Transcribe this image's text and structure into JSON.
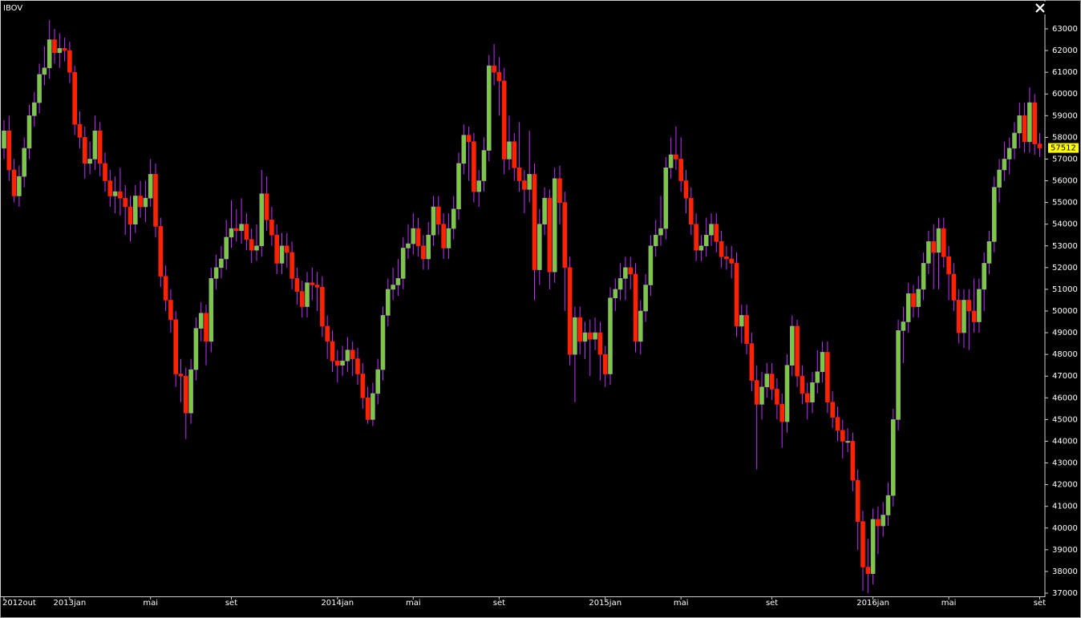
{
  "chart_data": {
    "type": "candlestick",
    "title": "IBOV",
    "up_color": "#7ac943",
    "down_color": "#ff2200",
    "wick_color": "#c030ff",
    "ylim": [
      37000,
      63000
    ],
    "yticks": [
      37000,
      38000,
      39000,
      40000,
      41000,
      42000,
      43000,
      44000,
      45000,
      46000,
      47000,
      48000,
      49000,
      50000,
      51000,
      52000,
      53000,
      54000,
      55000,
      56000,
      57000,
      58000,
      59000,
      60000,
      61000,
      62000,
      63000
    ],
    "categories": [
      "2012out",
      null,
      null,
      null,
      null,
      null,
      null,
      null,
      null,
      null,
      null,
      null,
      null,
      "2013jan",
      null,
      null,
      null,
      null,
      null,
      null,
      null,
      null,
      null,
      null,
      null,
      null,
      null,
      null,
      null,
      "mai",
      null,
      null,
      null,
      null,
      null,
      null,
      null,
      null,
      null,
      null,
      null,
      null,
      null,
      null,
      null,
      "set",
      null,
      null,
      null,
      null,
      null,
      null,
      null,
      null,
      null,
      null,
      null,
      null,
      null,
      null,
      null,
      null,
      null,
      null,
      null,
      null,
      "2014jan",
      null,
      null,
      null,
      null,
      null,
      null,
      null,
      null,
      null,
      null,
      null,
      null,
      null,
      null,
      "mai",
      null,
      null,
      null,
      null,
      null,
      null,
      null,
      null,
      null,
      null,
      null,
      null,
      null,
      null,
      null,
      null,
      "set",
      null,
      null,
      null,
      null,
      null,
      null,
      null,
      null,
      null,
      null,
      null,
      null,
      null,
      null,
      null,
      null,
      null,
      null,
      null,
      null,
      "2015jan",
      null,
      null,
      null,
      null,
      null,
      null,
      null,
      null,
      null,
      null,
      null,
      null,
      null,
      null,
      "mai",
      null,
      null,
      null,
      null,
      null,
      null,
      null,
      null,
      null,
      null,
      null,
      null,
      null,
      null,
      null,
      null,
      null,
      "set",
      null,
      null,
      null,
      null,
      null,
      null,
      null,
      null,
      null,
      null,
      null,
      null,
      null,
      null,
      null,
      null,
      null,
      null,
      null,
      "2016jan",
      null,
      null,
      null,
      null,
      null,
      null,
      null,
      null,
      null,
      null,
      null,
      null,
      null,
      null,
      "mai",
      null,
      null,
      null,
      null,
      null,
      null,
      null,
      null,
      null,
      null,
      null,
      null,
      null,
      null,
      null,
      null,
      null,
      "set"
    ],
    "open": [
      57500,
      58300,
      56500,
      55300,
      56200,
      57500,
      59000,
      59600,
      60900,
      61200,
      62500,
      61900,
      62100,
      62000,
      61000,
      58600,
      58000,
      56800,
      57000,
      58300,
      56800,
      56000,
      55300,
      55500,
      55200,
      54800,
      54000,
      55300,
      54800,
      55200,
      56300,
      53900,
      51600,
      50500,
      49600,
      47100,
      47000,
      45300,
      47300,
      49200,
      49900,
      48600,
      51500,
      52000,
      52400,
      53400,
      53800,
      53700,
      54000,
      53300,
      52800,
      53000,
      55400,
      54200,
      53500,
      52200,
      53000,
      52700,
      51500,
      50900,
      50200,
      51300,
      51200,
      51100,
      49300,
      48600,
      47700,
      47500,
      47700,
      48200,
      47800,
      47100,
      46000,
      45000,
      46200,
      47300,
      49800,
      51000,
      51200,
      51500,
      52900,
      53100,
      53800,
      53000,
      52400,
      53500,
      54800,
      54000,
      52900,
      53800,
      54700,
      56800,
      58100,
      57800,
      55500,
      56000,
      57400,
      61300,
      61000,
      60600,
      57000,
      57800,
      56600,
      56000,
      55600,
      56300,
      51900,
      54000,
      55200,
      51800,
      56100,
      55000,
      52000,
      48000,
      49700,
      48600,
      49000,
      48700,
      49000,
      48000,
      47100,
      50600,
      51000,
      51500,
      52000,
      51700,
      48600,
      50000,
      51200,
      53000,
      53500,
      53800,
      56600,
      57200,
      57000,
      56000,
      55200,
      54000,
      52800,
      53000,
      53500,
      54000,
      53200,
      52500,
      52400,
      52200,
      49300,
      49800,
      48500,
      46800,
      45700,
      46500,
      47100,
      46400,
      45700,
      44900,
      47500,
      49300,
      47000,
      46200,
      45800,
      46700,
      47200,
      48100,
      45800,
      45100,
      44500,
      44000,
      44000,
      42200,
      40300,
      38200,
      37900,
      40400,
      40100,
      40600,
      41500,
      45000,
      49100,
      49500,
      50800,
      50200,
      51000,
      52200,
      53200,
      52700,
      53800,
      52500,
      51700,
      50500,
      49000,
      50500,
      50000,
      49500,
      51000,
      52200,
      53200,
      55700,
      56500,
      57000,
      57500,
      58200,
      59000,
      57800,
      59600,
      57700
    ],
    "high": [
      58800,
      59000,
      57000,
      56700,
      58000,
      59500,
      60100,
      61400,
      62200,
      63400,
      63000,
      62800,
      62600,
      62400,
      61300,
      59200,
      58500,
      57800,
      59000,
      58700,
      57300,
      56500,
      56200,
      56600,
      55800,
      55300,
      55800,
      56000,
      56000,
      57000,
      56800,
      54300,
      52100,
      51000,
      50000,
      47800,
      47400,
      47800,
      49700,
      50400,
      50300,
      52000,
      52600,
      53000,
      54200,
      55100,
      54700,
      55200,
      54500,
      53800,
      54000,
      56500,
      56200,
      54800,
      54000,
      53600,
      53600,
      53200,
      52000,
      51400,
      51800,
      52000,
      51800,
      51600,
      49800,
      49100,
      48200,
      48400,
      48800,
      48600,
      48300,
      47600,
      46500,
      46700,
      47800,
      50200,
      51500,
      52000,
      52400,
      53400,
      54000,
      54500,
      54300,
      53500,
      54100,
      55300,
      55300,
      54500,
      54500,
      55300,
      57300,
      58600,
      58500,
      58200,
      56500,
      58000,
      61800,
      62300,
      61700,
      61200,
      59000,
      58200,
      58700,
      56500,
      58300,
      56800,
      54700,
      55700,
      55600,
      56600,
      56700,
      55500,
      52500,
      50200,
      50200,
      49500,
      49600,
      49700,
      49500,
      48400,
      51100,
      51500,
      52200,
      52500,
      52500,
      52200,
      50500,
      51700,
      53500,
      54200,
      55300,
      57100,
      58000,
      58500,
      58000,
      56500,
      55700,
      54500,
      53500,
      54300,
      54500,
      54500,
      53700,
      53000,
      53000,
      52700,
      50300,
      50300,
      49000,
      47500,
      47200,
      47600,
      47600,
      46900,
      46200,
      48000,
      49800,
      49600,
      47500,
      46700,
      47200,
      48200,
      48600,
      48600,
      46300,
      45600,
      45000,
      44600,
      44400,
      42700,
      40800,
      39500,
      40900,
      41000,
      41200,
      42100,
      45500,
      49600,
      50200,
      51300,
      51200,
      51600,
      52700,
      53700,
      54000,
      54300,
      54300,
      53000,
      52200,
      51000,
      51000,
      51000,
      51500,
      51500,
      52700,
      53700,
      56200,
      57000,
      57800,
      58000,
      58700,
      59600,
      59600,
      60300,
      60000,
      58200
    ],
    "low": [
      57000,
      56000,
      55000,
      54800,
      55700,
      57000,
      58500,
      59100,
      60400,
      60700,
      61400,
      61200,
      61500,
      60500,
      58100,
      57500,
      56100,
      56300,
      56500,
      56200,
      55500,
      54800,
      54500,
      54400,
      53500,
      53200,
      53600,
      54300,
      54100,
      54800,
      53400,
      51100,
      50000,
      49000,
      46500,
      45800,
      44100,
      44800,
      46800,
      48600,
      47500,
      48100,
      51000,
      51500,
      51900,
      52900,
      53200,
      53100,
      52800,
      52200,
      52300,
      52500,
      53700,
      53000,
      51700,
      51700,
      52000,
      51000,
      50300,
      49700,
      49700,
      50500,
      50000,
      48800,
      47800,
      47200,
      46700,
      47000,
      47200,
      47000,
      46600,
      45500,
      44800,
      44700,
      45700,
      46800,
      49300,
      50500,
      50700,
      51000,
      52400,
      52600,
      52500,
      51900,
      51900,
      53000,
      53500,
      52400,
      52400,
      53300,
      54200,
      56300,
      56000,
      55000,
      54800,
      55500,
      56900,
      60400,
      59000,
      56300,
      56500,
      56000,
      55500,
      54500,
      55000,
      50500,
      51200,
      53500,
      51000,
      51300,
      54000,
      50000,
      47500,
      45800,
      48000,
      47800,
      47000,
      48200,
      46800,
      46500,
      46600,
      50000,
      50500,
      50500,
      51000,
      48100,
      48000,
      49500,
      50700,
      52500,
      53000,
      53300,
      56100,
      56500,
      55500,
      54500,
      53500,
      52300,
      52300,
      52500,
      53000,
      52700,
      52000,
      51900,
      51500,
      48800,
      48500,
      48000,
      46300,
      42700,
      45000,
      46000,
      45900,
      45000,
      43700,
      44400,
      47000,
      46500,
      45700,
      45000,
      45300,
      46200,
      46700,
      45300,
      44600,
      44000,
      43200,
      43500,
      41700,
      39000,
      37100,
      37000,
      37400,
      38800,
      39600,
      40100,
      41000,
      44500,
      47600,
      49000,
      49700,
      49700,
      50500,
      51700,
      51000,
      51000,
      52000,
      50500,
      50000,
      48500,
      48300,
      48200,
      49000,
      49000,
      50000,
      51700,
      52700,
      55000,
      56000,
      56300,
      57000,
      57500,
      57300,
      57300,
      57200,
      57100
    ],
    "close": [
      58300,
      56500,
      55300,
      56200,
      57500,
      59000,
      59600,
      60900,
      61200,
      62500,
      61900,
      62100,
      62000,
      61000,
      58600,
      58000,
      56800,
      57000,
      58300,
      56800,
      56000,
      55300,
      55500,
      55200,
      54800,
      54000,
      55300,
      54800,
      55200,
      56300,
      53900,
      51600,
      50500,
      49600,
      47100,
      47000,
      45300,
      47300,
      49200,
      49900,
      48600,
      51500,
      52000,
      52400,
      53400,
      53800,
      53700,
      54000,
      53300,
      52800,
      53000,
      55400,
      54200,
      53500,
      52200,
      53000,
      52700,
      51500,
      50900,
      50200,
      51300,
      51200,
      51100,
      49300,
      48600,
      47700,
      47500,
      47700,
      48200,
      47800,
      47100,
      46000,
      45000,
      46200,
      47300,
      49800,
      51000,
      51200,
      51500,
      52900,
      53100,
      53800,
      53000,
      52400,
      53500,
      54800,
      54000,
      52900,
      53800,
      54700,
      56800,
      58100,
      57800,
      55500,
      56000,
      57400,
      61300,
      61000,
      60600,
      57000,
      57800,
      56600,
      56000,
      55600,
      56300,
      51900,
      54000,
      55200,
      51800,
      56100,
      55000,
      52000,
      48000,
      49700,
      48600,
      49000,
      48700,
      49000,
      48000,
      47100,
      50600,
      51000,
      51500,
      52000,
      51700,
      48600,
      50000,
      51200,
      53000,
      53500,
      53800,
      56600,
      57200,
      57000,
      56000,
      55200,
      54000,
      52800,
      53000,
      53500,
      54000,
      53200,
      52500,
      52400,
      52200,
      49300,
      49800,
      48500,
      46800,
      45700,
      46500,
      47100,
      46400,
      45700,
      44900,
      47500,
      49300,
      47000,
      46200,
      45800,
      46700,
      47200,
      48100,
      45800,
      45100,
      44500,
      44000,
      44000,
      42200,
      40300,
      38200,
      37900,
      40400,
      40100,
      40600,
      41500,
      45000,
      49100,
      49500,
      50800,
      50200,
      51000,
      52200,
      53200,
      52700,
      53800,
      52500,
      51700,
      50500,
      49000,
      50500,
      50000,
      49500,
      51000,
      52200,
      53200,
      55700,
      56500,
      57000,
      57500,
      58200,
      59000,
      57800,
      59600,
      57700,
      57512
    ]
  }
}
